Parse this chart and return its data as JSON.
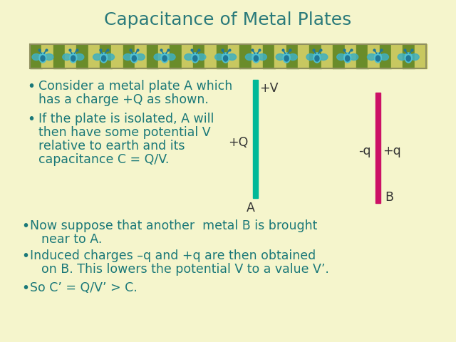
{
  "title": "Capacitance of Metal Plates",
  "title_color": "#2a7a7a",
  "title_fontsize": 18,
  "background_color": "#f5f5cc",
  "text_color": "#1a7878",
  "label_color": "#333333",
  "bullet1_line1": "Consider a metal plate A which",
  "bullet1_line2": "has a charge +Q as shown.",
  "bullet2_line1": "If the plate is isolated, A will",
  "bullet2_line2": "then have some potential V",
  "bullet2_line3": "relative to earth and its",
  "bullet2_line4": "capacitance C = Q/V.",
  "bullet3_line1": "Now suppose that another  metal B is brought",
  "bullet3_line2": "near to A.",
  "bullet4_line1": "Induced charges –q and +q are then obtained",
  "bullet4_line2": "on B. This lowers the potential V to a value V’.",
  "bullet5": "So C’ = Q/V’ > C.",
  "plate_A_color": "#00b898",
  "plate_B_color": "#cc1166",
  "stripe_green": "#6a8c2a",
  "stripe_light": "#c8c860",
  "flower_outer": "#40b0c0",
  "flower_inner": "#207898",
  "flower_body": "#50c0d0"
}
